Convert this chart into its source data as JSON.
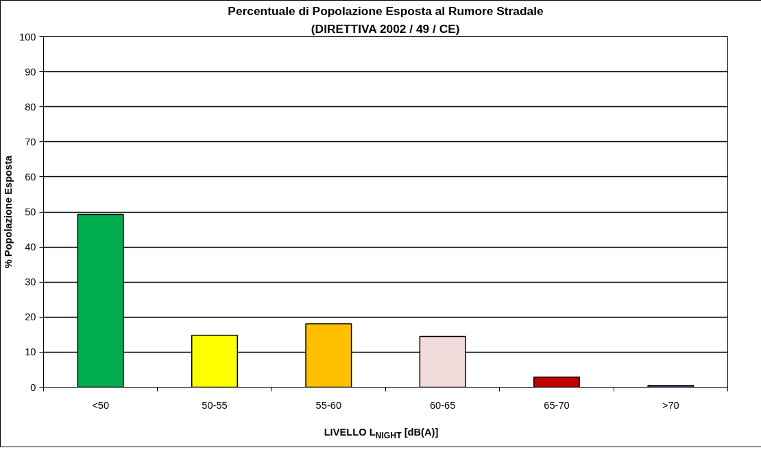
{
  "chart_data": {
    "type": "bar",
    "title": "Percentuale di Popolazione Esposta al Rumore Stradale",
    "subtitle": "(DIRETTIVA 2002 / 49 / CE)",
    "xlabel": "LIVELLO L$_{NIGHT}$ [dB(A)]",
    "ylabel": "% Popolazione Esposta",
    "categories": [
      "<50",
      "50-55",
      "55-60",
      "60-65",
      "65-70",
      ">70"
    ],
    "values": [
      49.3,
      14.8,
      18.1,
      14.5,
      2.9,
      0.5
    ],
    "colors": [
      "#00ac4c",
      "#ffff00",
      "#ffc000",
      "#f2dcdb",
      "#c00000",
      "#7030a0"
    ],
    "ylim": [
      0,
      100
    ],
    "yticks": [
      0,
      10,
      20,
      30,
      40,
      50,
      60,
      70,
      80,
      90,
      100
    ],
    "grid": "y"
  }
}
